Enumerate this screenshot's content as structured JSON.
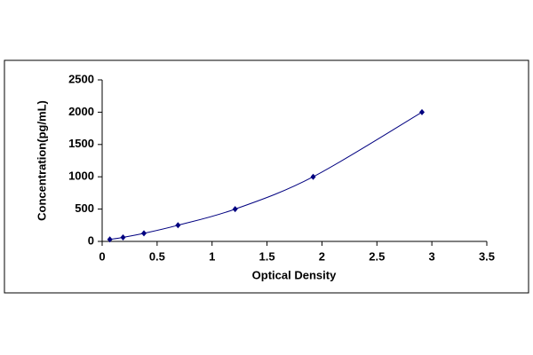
{
  "chart_data": {
    "type": "scatter",
    "x_label": "Optical Density",
    "y_label": "Concentration(pg/mL)",
    "series": [
      {
        "color": "#000080",
        "x": [
          0.07,
          0.19,
          0.38,
          0.69,
          1.21,
          1.92,
          2.91
        ],
        "values": [
          31.25,
          62.5,
          125,
          250,
          500,
          1000,
          2000
        ]
      }
    ],
    "xlim": [
      0,
      3.5
    ],
    "xticks": [
      0,
      0.5,
      1,
      1.5,
      2,
      2.5,
      3,
      3.5
    ],
    "ylim": [
      0,
      2500
    ],
    "yticks": [
      0,
      500,
      1000,
      1500,
      2000,
      2500
    ],
    "grid": false,
    "curve": true
  }
}
